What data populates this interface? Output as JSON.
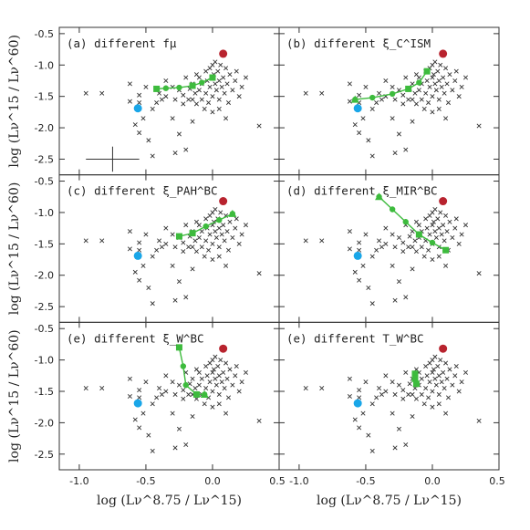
{
  "figure": {
    "xlabel": "log (Lν^8.75 / Lν^15)",
    "ylabel": "log (Lν^15 / Lν^60)"
  },
  "colors": {
    "model": "#3dbb3d",
    "blue_point": "#19a6e8",
    "red_point": "#b8232e",
    "cross": "#333333",
    "frame": "#333333"
  },
  "chart_data": {
    "type": "scatter",
    "grid": false,
    "layout": "3x2 panels sharing axes",
    "xlim": [
      -1.15,
      0.5
    ],
    "ylim": [
      -2.75,
      -0.4
    ],
    "xticks": [
      "-1.0",
      "-0.5",
      "0.0",
      "0.5"
    ],
    "yticks": [
      "-0.5",
      "-1.0",
      "-1.5",
      "-2.0",
      "-2.5"
    ],
    "xlabel": "log (Lν^8.75 / Lν^15)",
    "ylabel": "log (Lν^15 / Lν^60)",
    "observed_crosses": [
      [
        -0.95,
        -1.45
      ],
      [
        -0.83,
        -1.45
      ],
      [
        -0.62,
        -1.3
      ],
      [
        -0.62,
        -1.58
      ],
      [
        -0.55,
        -1.48
      ],
      [
        -0.58,
        -1.95
      ],
      [
        -0.55,
        -2.08
      ],
      [
        -0.52,
        -1.85
      ],
      [
        -0.48,
        -2.2
      ],
      [
        -0.45,
        -2.45
      ],
      [
        -0.42,
        -1.6
      ],
      [
        -0.4,
        -1.45
      ],
      [
        -0.38,
        -1.55
      ],
      [
        -0.35,
        -1.5
      ],
      [
        -0.3,
        -1.35
      ],
      [
        -0.3,
        -1.85
      ],
      [
        -0.28,
        -1.55
      ],
      [
        -0.25,
        -1.4
      ],
      [
        -0.25,
        -2.1
      ],
      [
        -0.22,
        -1.48
      ],
      [
        -0.22,
        -1.62
      ],
      [
        -0.2,
        -2.35
      ],
      [
        -0.2,
        -1.2
      ],
      [
        -0.18,
        -1.55
      ],
      [
        -0.17,
        -1.38
      ],
      [
        -0.15,
        -1.3
      ],
      [
        -0.15,
        -1.55
      ],
      [
        -0.13,
        -1.45
      ],
      [
        -0.12,
        -1.62
      ],
      [
        -0.1,
        -1.2
      ],
      [
        -0.1,
        -1.4
      ],
      [
        -0.08,
        -1.55
      ],
      [
        -0.08,
        -1.3
      ],
      [
        -0.05,
        -1.1
      ],
      [
        -0.05,
        -1.45
      ],
      [
        -0.04,
        -1.25
      ],
      [
        -0.03,
        -1.6
      ],
      [
        -0.02,
        -1.35
      ],
      [
        -0.02,
        -1.05
      ],
      [
        0.0,
        -1.0
      ],
      [
        0.0,
        -1.5
      ],
      [
        0.0,
        -1.2
      ],
      [
        0.01,
        -1.15
      ],
      [
        0.02,
        -1.3
      ],
      [
        0.02,
        -0.95
      ],
      [
        0.03,
        -1.4
      ],
      [
        0.04,
        -1.1
      ],
      [
        0.05,
        -1.25
      ],
      [
        0.05,
        -1.55
      ],
      [
        0.06,
        -1.0
      ],
      [
        0.07,
        -1.35
      ],
      [
        0.08,
        -1.2
      ],
      [
        0.09,
        -1.45
      ],
      [
        0.1,
        -1.05
      ],
      [
        0.11,
        -1.3
      ],
      [
        0.12,
        -1.6
      ],
      [
        0.13,
        -1.15
      ],
      [
        0.15,
        -1.4
      ],
      [
        0.17,
        -1.25
      ],
      [
        0.2,
        -1.5
      ],
      [
        0.22,
        -1.35
      ],
      [
        0.25,
        -1.2
      ],
      [
        0.05,
        -1.7
      ],
      [
        -0.06,
        -1.7
      ],
      [
        0.18,
        -1.1
      ],
      [
        -0.12,
        -1.15
      ],
      [
        -0.35,
        -1.25
      ],
      [
        -0.5,
        -1.35
      ],
      [
        0.35,
        -1.97
      ],
      [
        -0.15,
        -1.9
      ],
      [
        -0.28,
        -2.4
      ],
      [
        -0.55,
        -1.6
      ],
      [
        0.1,
        -1.85
      ],
      [
        -0.45,
        -1.7
      ],
      [
        0.0,
        -1.75
      ]
    ],
    "fixed_points": {
      "blue": [
        -0.56,
        -1.69
      ],
      "red": [
        0.08,
        -0.82
      ]
    },
    "error_bar": {
      "x": -0.75,
      "y": -2.5,
      "dx": 0.2,
      "dy": 0.2
    },
    "panels": [
      {
        "title": "(a) different fμ",
        "model": [
          [
            -0.42,
            -1.38
          ],
          [
            -0.35,
            -1.37
          ],
          [
            -0.25,
            -1.36
          ],
          [
            -0.15,
            -1.33
          ],
          [
            -0.08,
            -1.28
          ],
          [
            0.0,
            -1.2
          ]
        ],
        "markers": [
          {
            "shape": "square",
            "at": 0
          },
          {
            "shape": "square",
            "at": 3
          },
          {
            "shape": "square",
            "at": 5
          }
        ]
      },
      {
        "title": "(b) different ξ_C^ISM",
        "model": [
          [
            -0.58,
            -1.55
          ],
          [
            -0.45,
            -1.52
          ],
          [
            -0.3,
            -1.46
          ],
          [
            -0.18,
            -1.38
          ],
          [
            -0.1,
            -1.28
          ],
          [
            -0.04,
            -1.1
          ]
        ],
        "markers": [
          {
            "shape": "triangle",
            "at": 0
          },
          {
            "shape": "square",
            "at": 3
          },
          {
            "shape": "square",
            "at": 5
          }
        ]
      },
      {
        "title": "(c) different ξ_PAH^BC",
        "model": [
          [
            -0.25,
            -1.38
          ],
          [
            -0.15,
            -1.33
          ],
          [
            -0.05,
            -1.22
          ],
          [
            0.05,
            -1.12
          ],
          [
            0.15,
            -1.02
          ]
        ],
        "markers": [
          {
            "shape": "square",
            "at": 0
          },
          {
            "shape": "square",
            "at": 1
          },
          {
            "shape": "triangle",
            "at": 4
          }
        ]
      },
      {
        "title": "(d) different ξ_MIR^BC",
        "model": [
          [
            -0.4,
            -0.75
          ],
          [
            -0.3,
            -0.95
          ],
          [
            -0.2,
            -1.15
          ],
          [
            -0.1,
            -1.35
          ],
          [
            0.0,
            -1.48
          ],
          [
            0.1,
            -1.6
          ]
        ],
        "markers": [
          {
            "shape": "triangle",
            "at": 0
          },
          {
            "shape": "square",
            "at": 3
          },
          {
            "shape": "square",
            "at": 5
          }
        ]
      },
      {
        "title": "(e) different ξ_W^BC",
        "model": [
          [
            -0.25,
            -0.8
          ],
          [
            -0.22,
            -1.1
          ],
          [
            -0.2,
            -1.4
          ],
          [
            -0.12,
            -1.55
          ],
          [
            -0.06,
            -1.55
          ]
        ],
        "markers": [
          {
            "shape": "square",
            "at": 0
          },
          {
            "shape": "square",
            "at": 3
          },
          {
            "shape": "triangle",
            "at": 4
          }
        ]
      },
      {
        "title": "(e) different T_W^BC",
        "model": [
          [
            -0.13,
            -1.22
          ],
          [
            -0.13,
            -1.3
          ],
          [
            -0.12,
            -1.38
          ]
        ],
        "markers": [
          {
            "shape": "square",
            "at": 0
          },
          {
            "shape": "square",
            "at": 1
          },
          {
            "shape": "square",
            "at": 2
          }
        ]
      }
    ]
  }
}
